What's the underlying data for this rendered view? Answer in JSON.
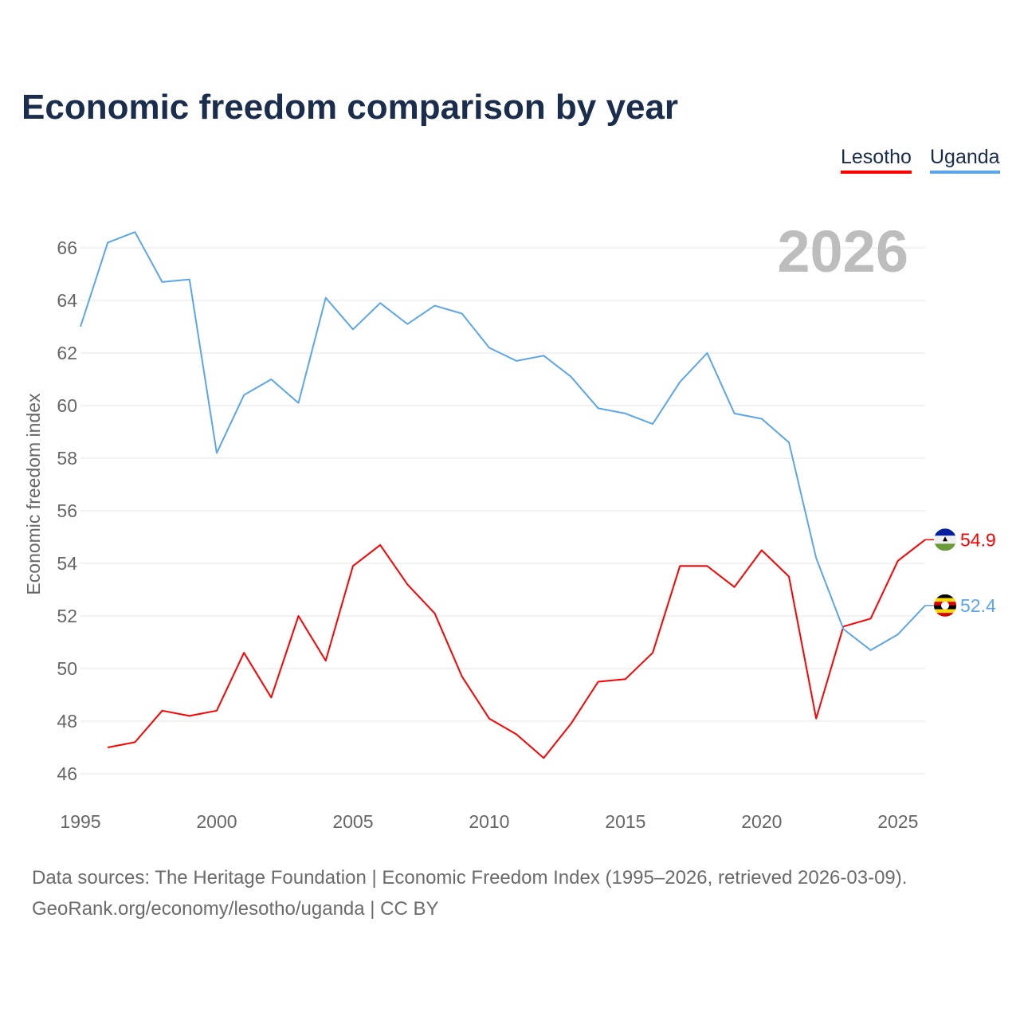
{
  "chart_data": {
    "type": "line",
    "title": "Economic freedom comparison by year",
    "ylabel": "Economic freedom index",
    "xlabel": "",
    "xlim": [
      1995,
      2026
    ],
    "ylim": [
      45,
      67.5
    ],
    "xticks": [
      1995,
      2000,
      2005,
      2010,
      2015,
      2020,
      2025
    ],
    "yticks": [
      46,
      48,
      50,
      52,
      54,
      56,
      58,
      60,
      62,
      64,
      66
    ],
    "grid": true,
    "legend_position": "top-right",
    "watermark_year": "2026",
    "series": [
      {
        "name": "Lesotho",
        "color": "#ff0000",
        "end_label": "54.9",
        "x": [
          1996,
          1997,
          1998,
          1999,
          2000,
          2001,
          2002,
          2003,
          2004,
          2005,
          2006,
          2007,
          2008,
          2009,
          2010,
          2011,
          2012,
          2013,
          2014,
          2015,
          2016,
          2017,
          2018,
          2019,
          2020,
          2021,
          2022,
          2023,
          2024,
          2025,
          2026
        ],
        "values": [
          47.0,
          47.2,
          48.4,
          48.2,
          48.4,
          50.6,
          48.9,
          52.0,
          50.3,
          53.9,
          54.7,
          53.2,
          52.1,
          49.7,
          48.1,
          47.5,
          46.6,
          47.9,
          49.5,
          49.6,
          50.6,
          53.9,
          53.9,
          53.1,
          54.5,
          53.5,
          48.1,
          51.6,
          51.9,
          54.1,
          54.9
        ]
      },
      {
        "name": "Uganda",
        "color": "#5ba6ea",
        "end_label": "52.4",
        "x": [
          1995,
          1996,
          1997,
          1998,
          1999,
          2000,
          2001,
          2002,
          2003,
          2004,
          2005,
          2006,
          2007,
          2008,
          2009,
          2010,
          2011,
          2012,
          2013,
          2014,
          2015,
          2016,
          2017,
          2018,
          2019,
          2020,
          2021,
          2022,
          2023,
          2024,
          2025,
          2026
        ],
        "values": [
          63.0,
          66.2,
          66.6,
          64.7,
          64.8,
          58.2,
          60.4,
          61.0,
          60.1,
          64.1,
          62.9,
          63.9,
          63.1,
          63.8,
          63.5,
          62.2,
          61.7,
          61.9,
          61.1,
          59.9,
          59.7,
          59.3,
          60.9,
          62.0,
          59.7,
          59.5,
          58.6,
          54.2,
          51.5,
          50.7,
          51.3,
          52.4
        ]
      }
    ]
  },
  "footer": {
    "line1": "Data sources: The Heritage Foundation | Economic Freedom Index (1995–2026, retrieved 2026-03-09).",
    "line2": "GeoRank.org/economy/lesotho/uganda | CC BY"
  }
}
